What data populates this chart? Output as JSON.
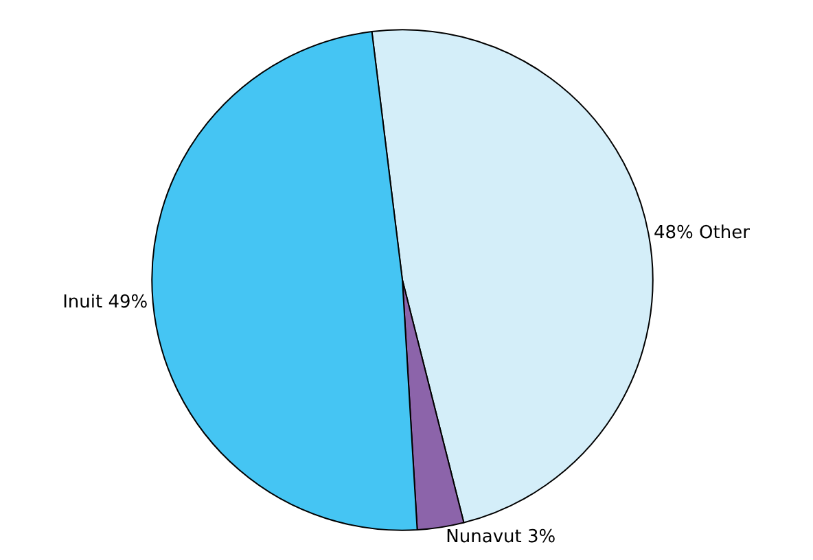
{
  "chart_data": {
    "type": "pie",
    "categories": [
      "48% Other",
      "Nunavut 3%",
      "Inuit 49%"
    ],
    "values": [
      48,
      3,
      49
    ],
    "colors": [
      "#d4eef9",
      "#8c64aa",
      "#45c5f3"
    ],
    "legend": false
  }
}
